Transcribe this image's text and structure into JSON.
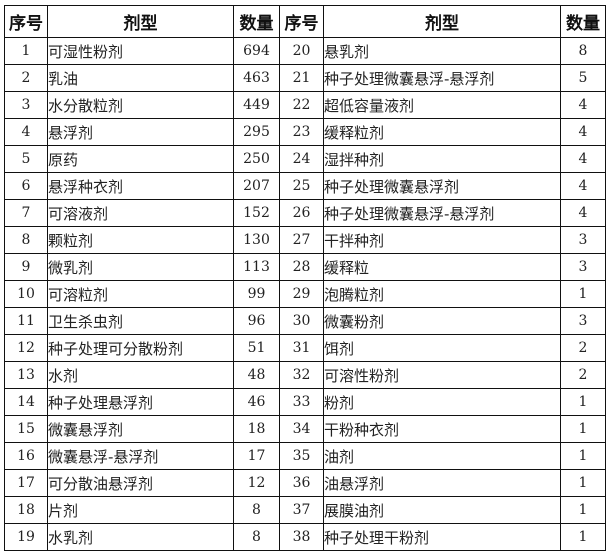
{
  "headers": [
    "序号",
    "剂型",
    "数量",
    "序号",
    "剂型",
    "数量"
  ],
  "rows": [
    {
      "no": "1",
      "type": "可湿性粉剂",
      "count": "694",
      "no2": "20",
      "type2": "悬乳剂",
      "count2": "8"
    },
    {
      "no": "2",
      "type": "乳油",
      "count": "463",
      "no2": "21",
      "type2": "种子处理微囊悬浮-悬浮剂",
      "count2": "5"
    },
    {
      "no": "3",
      "type": "水分散粒剂",
      "count": "449",
      "no2": "22",
      "type2": "超低容量液剂",
      "count2": "4"
    },
    {
      "no": "4",
      "type": "悬浮剂",
      "count": "295",
      "no2": "23",
      "type2": "缓释粒剂",
      "count2": "4"
    },
    {
      "no": "5",
      "type": "原药",
      "count": "250",
      "no2": "24",
      "type2": "湿拌种剂",
      "count2": "4"
    },
    {
      "no": "6",
      "type": "悬浮种衣剂",
      "count": "207",
      "no2": "25",
      "type2": "种子处理微囊悬浮剂",
      "count2": "4"
    },
    {
      "no": "7",
      "type": "可溶液剂",
      "count": "152",
      "no2": "26",
      "type2": "种子处理微囊悬浮-悬浮剂",
      "count2": "4"
    },
    {
      "no": "8",
      "type": "颗粒剂",
      "count": "130",
      "no2": "27",
      "type2": "干拌种剂",
      "count2": "3"
    },
    {
      "no": "9",
      "type": "微乳剂",
      "count": "113",
      "no2": "28",
      "type2": "缓释粒",
      "count2": "3"
    },
    {
      "no": "10",
      "type": "可溶粒剂",
      "count": "99",
      "no2": "29",
      "type2": "泡腾粒剂",
      "count2": "1"
    },
    {
      "no": "11",
      "type": "卫生杀虫剂",
      "count": "96",
      "no2": "30",
      "type2": "微囊粉剂",
      "count2": "3"
    },
    {
      "no": "12",
      "type": "种子处理可分散粉剂",
      "count": "51",
      "no2": "31",
      "type2": "饵剂",
      "count2": "2"
    },
    {
      "no": "13",
      "type": "水剂",
      "count": "48",
      "no2": "32",
      "type2": "可溶性粉剂",
      "count2": "2"
    },
    {
      "no": "14",
      "type": "种子处理悬浮剂",
      "count": "46",
      "no2": "33",
      "type2": "粉剂",
      "count2": "1"
    },
    {
      "no": "15",
      "type": "微囊悬浮剂",
      "count": "18",
      "no2": "34",
      "type2": "干粉种衣剂",
      "count2": "1"
    },
    {
      "no": "16",
      "type": "微囊悬浮-悬浮剂",
      "count": "17",
      "no2": "35",
      "type2": "油剂",
      "count2": "1"
    },
    {
      "no": "17",
      "type": "可分散油悬浮剂",
      "count": "12",
      "no2": "36",
      "type2": "油悬浮剂",
      "count2": "1"
    },
    {
      "no": "18",
      "type": "片剂",
      "count": "8",
      "no2": "37",
      "type2": "展膜油剂",
      "count2": "1"
    },
    {
      "no": "19",
      "type": "水乳剂",
      "count": "8",
      "no2": "38",
      "type2": "种子处理干粉剂",
      "count2": "1"
    }
  ]
}
